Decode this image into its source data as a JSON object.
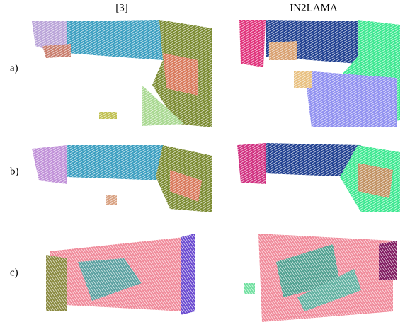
{
  "columns": [
    "[3]",
    "IN2LAMA"
  ],
  "rows": [
    "a)",
    "b)",
    "c)"
  ]
}
